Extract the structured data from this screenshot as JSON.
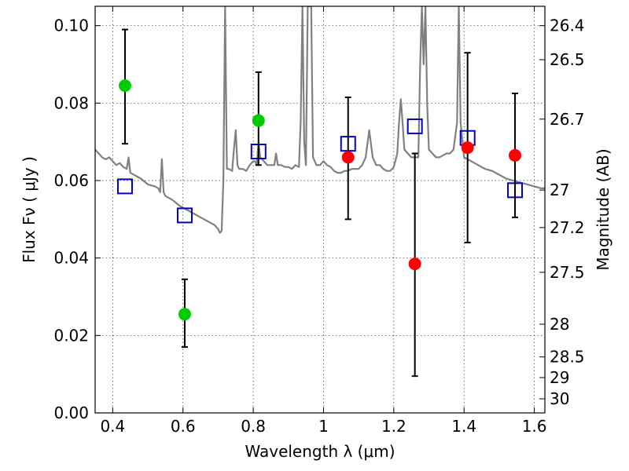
{
  "chart_data": {
    "type": "scatter",
    "title": "",
    "xlabel": "Wavelength  λ (μm)",
    "ylabel": "Flux  Fν  ( μJy )",
    "y2label": "Magnitude (AB)",
    "xlim": [
      0.35,
      1.63
    ],
    "ylim": [
      0.0,
      0.105
    ],
    "grid": true,
    "x_ticks": [
      {
        "value": 0.4,
        "label": "0.4"
      },
      {
        "value": 0.6,
        "label": "0.6"
      },
      {
        "value": 0.8,
        "label": "0.8"
      },
      {
        "value": 1.0,
        "label": "1"
      },
      {
        "value": 1.2,
        "label": "1.2"
      },
      {
        "value": 1.4,
        "label": "1.4"
      },
      {
        "value": 1.6,
        "label": "1.6"
      }
    ],
    "y_ticks": [
      {
        "value": 0.0,
        "label": "0.00"
      },
      {
        "value": 0.02,
        "label": "0.02"
      },
      {
        "value": 0.04,
        "label": "0.04"
      },
      {
        "value": 0.06,
        "label": "0.06"
      },
      {
        "value": 0.08,
        "label": "0.08"
      },
      {
        "value": 0.1,
        "label": "0.10"
      }
    ],
    "y2_ticks": [
      {
        "value": 26.4,
        "label": "26.4"
      },
      {
        "value": 26.5,
        "label": "26.5"
      },
      {
        "value": 26.7,
        "label": "26.7"
      },
      {
        "value": 27.0,
        "label": "27"
      },
      {
        "value": 27.2,
        "label": "27.2"
      },
      {
        "value": 27.5,
        "label": "27.5"
      },
      {
        "value": 28.0,
        "label": "28"
      },
      {
        "value": 28.5,
        "label": "28.5"
      },
      {
        "value": 29.0,
        "label": "29"
      },
      {
        "value": 30.0,
        "label": "30"
      }
    ],
    "series": [
      {
        "style": "line",
        "color": "#808080",
        "points": [
          [
            0.35,
            0.068
          ],
          [
            0.36,
            0.067
          ],
          [
            0.37,
            0.066
          ],
          [
            0.38,
            0.0655
          ],
          [
            0.39,
            0.066
          ],
          [
            0.4,
            0.065
          ],
          [
            0.41,
            0.064
          ],
          [
            0.42,
            0.0645
          ],
          [
            0.43,
            0.0635
          ],
          [
            0.44,
            0.063
          ],
          [
            0.445,
            0.066
          ],
          [
            0.45,
            0.062
          ],
          [
            0.46,
            0.0615
          ],
          [
            0.48,
            0.0605
          ],
          [
            0.5,
            0.059
          ],
          [
            0.52,
            0.0585
          ],
          [
            0.53,
            0.058
          ],
          [
            0.535,
            0.057
          ],
          [
            0.54,
            0.0655
          ],
          [
            0.545,
            0.057
          ],
          [
            0.55,
            0.056
          ],
          [
            0.57,
            0.055
          ],
          [
            0.59,
            0.0535
          ],
          [
            0.61,
            0.0525
          ],
          [
            0.63,
            0.0515
          ],
          [
            0.65,
            0.0505
          ],
          [
            0.67,
            0.0495
          ],
          [
            0.69,
            0.0485
          ],
          [
            0.7,
            0.0475
          ],
          [
            0.705,
            0.0465
          ],
          [
            0.71,
            0.047
          ],
          [
            0.715,
            0.06
          ],
          [
            0.72,
            0.105
          ],
          [
            0.725,
            0.063
          ],
          [
            0.73,
            0.063
          ],
          [
            0.74,
            0.0625
          ],
          [
            0.745,
            0.068
          ],
          [
            0.75,
            0.073
          ],
          [
            0.755,
            0.064
          ],
          [
            0.76,
            0.063
          ],
          [
            0.77,
            0.063
          ],
          [
            0.78,
            0.0625
          ],
          [
            0.79,
            0.064
          ],
          [
            0.8,
            0.065
          ],
          [
            0.805,
            0.065
          ],
          [
            0.81,
            0.064
          ],
          [
            0.815,
            0.07
          ],
          [
            0.82,
            0.066
          ],
          [
            0.83,
            0.065
          ],
          [
            0.84,
            0.064
          ],
          [
            0.85,
            0.064
          ],
          [
            0.86,
            0.064
          ],
          [
            0.865,
            0.067
          ],
          [
            0.87,
            0.064
          ],
          [
            0.88,
            0.064
          ],
          [
            0.89,
            0.0635
          ],
          [
            0.9,
            0.0635
          ],
          [
            0.91,
            0.063
          ],
          [
            0.92,
            0.064
          ],
          [
            0.93,
            0.0635
          ],
          [
            0.935,
            0.075
          ],
          [
            0.94,
            0.105
          ],
          [
            0.945,
            0.07
          ],
          [
            0.95,
            0.064
          ],
          [
            0.955,
            0.105
          ],
          [
            0.96,
            0.105
          ],
          [
            0.965,
            0.105
          ],
          [
            0.97,
            0.066
          ],
          [
            0.98,
            0.064
          ],
          [
            0.99,
            0.064
          ],
          [
            1.0,
            0.065
          ],
          [
            1.01,
            0.064
          ],
          [
            1.02,
            0.0635
          ],
          [
            1.03,
            0.0625
          ],
          [
            1.04,
            0.062
          ],
          [
            1.05,
            0.062
          ],
          [
            1.06,
            0.0625
          ],
          [
            1.07,
            0.0625
          ],
          [
            1.08,
            0.063
          ],
          [
            1.09,
            0.063
          ],
          [
            1.1,
            0.063
          ],
          [
            1.11,
            0.064
          ],
          [
            1.12,
            0.066
          ],
          [
            1.13,
            0.073
          ],
          [
            1.14,
            0.066
          ],
          [
            1.15,
            0.064
          ],
          [
            1.16,
            0.064
          ],
          [
            1.17,
            0.063
          ],
          [
            1.18,
            0.0625
          ],
          [
            1.19,
            0.0625
          ],
          [
            1.2,
            0.0635
          ],
          [
            1.21,
            0.067
          ],
          [
            1.215,
            0.075
          ],
          [
            1.22,
            0.081
          ],
          [
            1.225,
            0.075
          ],
          [
            1.23,
            0.068
          ],
          [
            1.24,
            0.067
          ],
          [
            1.25,
            0.066
          ],
          [
            1.26,
            0.066
          ],
          [
            1.27,
            0.066
          ],
          [
            1.275,
            0.09
          ],
          [
            1.28,
            0.105
          ],
          [
            1.285,
            0.09
          ],
          [
            1.29,
            0.105
          ],
          [
            1.295,
            0.08
          ],
          [
            1.3,
            0.068
          ],
          [
            1.31,
            0.067
          ],
          [
            1.32,
            0.066
          ],
          [
            1.33,
            0.066
          ],
          [
            1.34,
            0.0665
          ],
          [
            1.35,
            0.067
          ],
          [
            1.36,
            0.067
          ],
          [
            1.37,
            0.068
          ],
          [
            1.38,
            0.075
          ],
          [
            1.385,
            0.105
          ],
          [
            1.39,
            0.075
          ],
          [
            1.4,
            0.066
          ],
          [
            1.42,
            0.065
          ],
          [
            1.44,
            0.064
          ],
          [
            1.46,
            0.063
          ],
          [
            1.48,
            0.0625
          ],
          [
            1.5,
            0.0615
          ],
          [
            1.52,
            0.0605
          ],
          [
            1.54,
            0.06
          ],
          [
            1.56,
            0.0595
          ],
          [
            1.58,
            0.059
          ],
          [
            1.6,
            0.0585
          ],
          [
            1.62,
            0.058
          ],
          [
            1.63,
            0.058
          ]
        ]
      },
      {
        "style": "square",
        "color": "#0000cc",
        "points": [
          [
            0.435,
            0.0585
          ],
          [
            0.605,
            0.051
          ],
          [
            0.815,
            0.0675
          ],
          [
            1.07,
            0.0695
          ],
          [
            1.26,
            0.074
          ],
          [
            1.41,
            0.071
          ],
          [
            1.545,
            0.0575
          ]
        ]
      },
      {
        "style": "circle",
        "color": "#00cc00",
        "points": [
          {
            "x": 0.435,
            "y": 0.0845,
            "lo": 0.0695,
            "hi": 0.099
          },
          {
            "x": 0.605,
            "y": 0.0255,
            "lo": 0.017,
            "hi": 0.0345
          },
          {
            "x": 0.815,
            "y": 0.0755,
            "lo": 0.064,
            "hi": 0.088
          }
        ]
      },
      {
        "style": "circle",
        "color": "#ff0000",
        "points": [
          {
            "x": 1.07,
            "y": 0.066,
            "lo": 0.05,
            "hi": 0.0815
          },
          {
            "x": 1.26,
            "y": 0.0385,
            "lo": 0.0095,
            "hi": 0.067
          },
          {
            "x": 1.41,
            "y": 0.0685,
            "lo": 0.044,
            "hi": 0.093
          },
          {
            "x": 1.545,
            "y": 0.0665,
            "lo": 0.0505,
            "hi": 0.0825
          }
        ]
      }
    ]
  }
}
